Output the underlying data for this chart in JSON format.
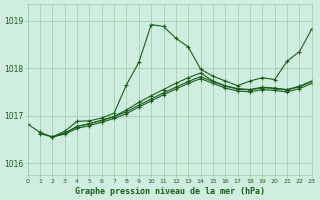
{
  "title": "Graphe pression niveau de la mer (hPa)",
  "bg_color": "#d0eee0",
  "grid_color": "#a0c8a8",
  "line_color": "#1a5e1a",
  "xlim": [
    0,
    23
  ],
  "ylim": [
    1015.75,
    1019.35
  ],
  "xticks": [
    0,
    1,
    2,
    3,
    4,
    5,
    6,
    7,
    8,
    9,
    10,
    11,
    12,
    13,
    14,
    15,
    16,
    17,
    18,
    19,
    20,
    21,
    22,
    23
  ],
  "yticks": [
    1016,
    1017,
    1018,
    1019
  ],
  "line1_x": [
    0,
    1,
    2,
    3,
    4,
    5,
    6,
    7,
    8,
    9,
    10,
    11,
    12,
    13,
    14,
    15,
    16,
    17,
    18,
    19,
    20,
    21,
    22,
    23
  ],
  "line1_y": [
    1016.82,
    1016.65,
    1016.55,
    1016.67,
    1016.88,
    1016.89,
    1016.95,
    1017.05,
    1017.65,
    1018.12,
    1018.92,
    1018.88,
    1018.63,
    1018.45,
    1017.98,
    1017.83,
    1017.73,
    1017.63,
    1017.73,
    1017.8,
    1017.76,
    1018.15,
    1018.35,
    1018.83
  ],
  "line2_x": [
    1,
    2,
    3,
    4,
    5,
    6,
    7,
    8,
    9,
    10,
    11,
    12,
    13,
    14,
    15,
    16,
    17,
    18,
    19,
    20,
    21,
    22,
    23
  ],
  "line2_y": [
    1016.62,
    1016.55,
    1016.63,
    1016.77,
    1016.83,
    1016.9,
    1016.98,
    1017.12,
    1017.28,
    1017.42,
    1017.55,
    1017.68,
    1017.8,
    1017.9,
    1017.73,
    1017.63,
    1017.57,
    1017.55,
    1017.6,
    1017.58,
    1017.55,
    1017.62,
    1017.73
  ],
  "line3_x": [
    2,
    3,
    4,
    5,
    6,
    7,
    8,
    9,
    10,
    11,
    12,
    13,
    14,
    15,
    16,
    17,
    18,
    19,
    20,
    21,
    22,
    23
  ],
  "line3_y": [
    1016.55,
    1016.63,
    1016.77,
    1016.83,
    1016.9,
    1016.98,
    1017.08,
    1017.22,
    1017.35,
    1017.48,
    1017.6,
    1017.72,
    1017.82,
    1017.72,
    1017.62,
    1017.56,
    1017.54,
    1017.59,
    1017.57,
    1017.54,
    1017.61,
    1017.72
  ],
  "line4_x": [
    2,
    3,
    4,
    5,
    6,
    7,
    8,
    9,
    10,
    11,
    12,
    13,
    14,
    15,
    16,
    17,
    18,
    19,
    20,
    21,
    22,
    23
  ],
  "line4_y": [
    1016.55,
    1016.61,
    1016.73,
    1016.79,
    1016.86,
    1016.94,
    1017.04,
    1017.18,
    1017.31,
    1017.44,
    1017.56,
    1017.68,
    1017.78,
    1017.68,
    1017.58,
    1017.52,
    1017.5,
    1017.55,
    1017.53,
    1017.5,
    1017.57,
    1017.68
  ]
}
